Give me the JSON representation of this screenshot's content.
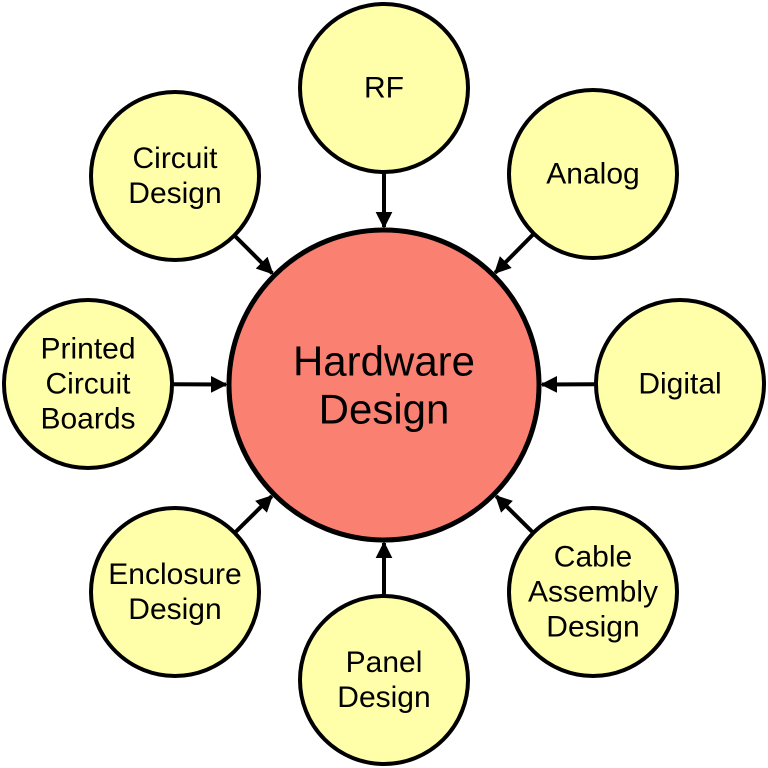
{
  "colors": {
    "center_fill": "#fa8072",
    "satellite_fill": "#ffffaa",
    "stroke": "#000000"
  },
  "center": {
    "lines": [
      "Hardware",
      "Design"
    ]
  },
  "satellites": [
    {
      "id": "rf",
      "lines": [
        "RF"
      ]
    },
    {
      "id": "analog",
      "lines": [
        "Analog"
      ]
    },
    {
      "id": "digital",
      "lines": [
        "Digital"
      ]
    },
    {
      "id": "cable-assembly-design",
      "lines": [
        "Cable",
        "Assembly",
        "Design"
      ]
    },
    {
      "id": "panel-design",
      "lines": [
        "Panel",
        "Design"
      ]
    },
    {
      "id": "enclosure-design",
      "lines": [
        "Enclosure",
        "Design"
      ]
    },
    {
      "id": "printed-circuit-boards",
      "lines": [
        "Printed",
        "Circuit",
        "Boards"
      ]
    },
    {
      "id": "circuit-design",
      "lines": [
        "Circuit",
        "Design"
      ]
    }
  ]
}
